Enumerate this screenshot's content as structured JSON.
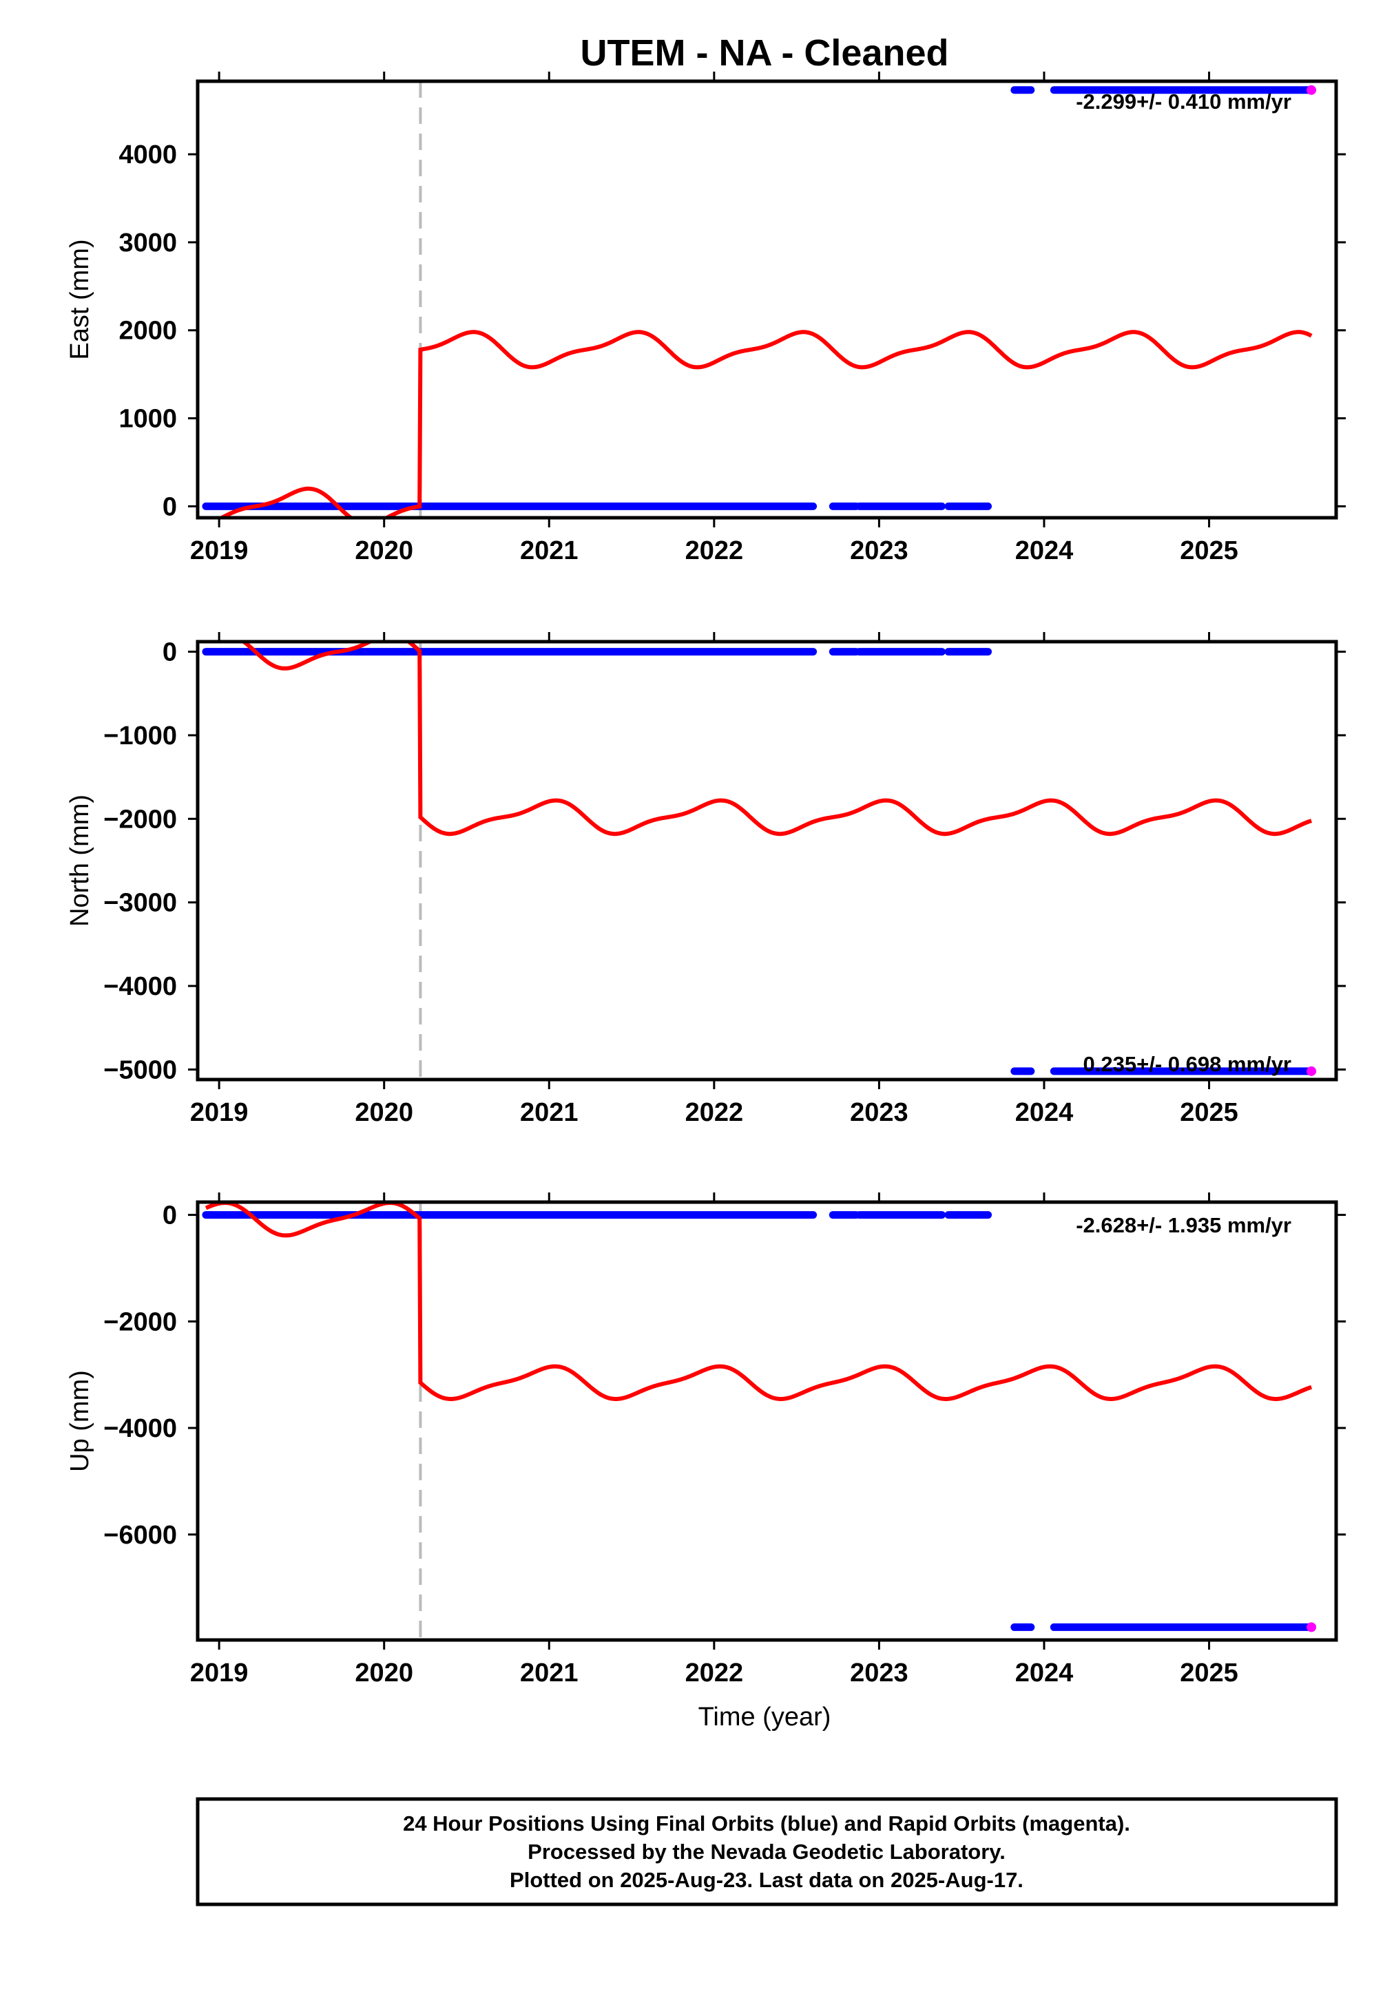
{
  "chart_data": {
    "type": "scatter",
    "title": "UTEM  - NA - Cleaned",
    "xlabel": "Time (year)",
    "xlim": [
      2018.87,
      2025.77
    ],
    "x_ticks": [
      2019,
      2020,
      2021,
      2022,
      2023,
      2024,
      2025
    ],
    "x_tick_labels": [
      "2019",
      "2020",
      "2021",
      "2022",
      "2023",
      "2024",
      "2025"
    ],
    "vertical_dashed_line_x": 2020.22,
    "colors": {
      "final_orbits": "#0000ff",
      "rapid_orbits": "#ff00ff",
      "model": "#ff0000",
      "event_line": "#bbbbbb"
    },
    "panels": [
      {
        "ylabel": "East (mm)",
        "ylim": [
          -130,
          4830
        ],
        "y_ticks": [
          0,
          1000,
          2000,
          3000,
          4000
        ],
        "y_tick_labels": [
          "0",
          "1000",
          "2000",
          "3000",
          "4000"
        ],
        "rate": "-2.299+/- 0.410 mm/yr",
        "data_segments": [
          {
            "x_start": 2018.92,
            "x_end": 2022.6,
            "y": 0
          },
          {
            "x_start": 2022.72,
            "x_end": 2022.86,
            "y": 0
          },
          {
            "x_start": 2022.88,
            "x_end": 2023.38,
            "y": 0
          },
          {
            "x_start": 2023.42,
            "x_end": 2023.66,
            "y": 0
          },
          {
            "x_start": 2023.82,
            "x_end": 2023.92,
            "y": 4730
          },
          {
            "x_start": 2024.06,
            "x_end": 2025.6,
            "y": 4730
          }
        ],
        "rapid_point": {
          "x": 2025.62,
          "y": 4730
        },
        "model": {
          "pre_offset": 0,
          "post_offset": 1780,
          "amplitude": 170,
          "phase_year": 2019.47,
          "semiannual": 60
        }
      },
      {
        "ylabel": "North (mm)",
        "ylim": [
          -5120,
          120
        ],
        "y_ticks": [
          -5000,
          -4000,
          -3000,
          -2000,
          -1000,
          0
        ],
        "y_tick_labels": [
          "−5000",
          "−4000",
          "−3000",
          "−2000",
          "−1000",
          "0"
        ],
        "rate": "0.235+/- 0.698 mm/yr",
        "data_segments": [
          {
            "x_start": 2018.92,
            "x_end": 2022.6,
            "y": 0
          },
          {
            "x_start": 2022.72,
            "x_end": 2022.86,
            "y": 0
          },
          {
            "x_start": 2022.88,
            "x_end": 2023.38,
            "y": 0
          },
          {
            "x_start": 2023.42,
            "x_end": 2023.66,
            "y": 0
          },
          {
            "x_start": 2023.82,
            "x_end": 2023.92,
            "y": -5020
          },
          {
            "x_start": 2024.06,
            "x_end": 2025.6,
            "y": -5020
          }
        ],
        "rapid_point": {
          "x": 2025.62,
          "y": -5020
        },
        "model": {
          "pre_offset": 0,
          "post_offset": -1980,
          "amplitude": -170,
          "phase_year": 2019.47,
          "semiannual": 60
        }
      },
      {
        "ylabel": "Up (mm)",
        "ylim": [
          -7980,
          240
        ],
        "y_ticks": [
          -6000,
          -4000,
          -2000,
          0
        ],
        "y_tick_labels": [
          "−6000",
          "−4000",
          "−2000",
          "0"
        ],
        "rate": "-2.628+/- 1.935 mm/yr",
        "data_segments": [
          {
            "x_start": 2018.92,
            "x_end": 2022.6,
            "y": 0
          },
          {
            "x_start": 2022.72,
            "x_end": 2022.86,
            "y": 0
          },
          {
            "x_start": 2022.88,
            "x_end": 2023.38,
            "y": 0
          },
          {
            "x_start": 2023.42,
            "x_end": 2023.66,
            "y": 0
          },
          {
            "x_start": 2023.82,
            "x_end": 2023.92,
            "y": -7740
          },
          {
            "x_start": 2024.06,
            "x_end": 2025.6,
            "y": -7740
          }
        ],
        "rapid_point": {
          "x": 2025.62,
          "y": -7740
        },
        "model": {
          "pre_offset": -80,
          "post_offset": -3150,
          "amplitude": -270,
          "phase_year": 2019.47,
          "semiannual": 80
        }
      }
    ]
  },
  "footer": {
    "line1": "24 Hour Positions Using Final Orbits (blue) and Rapid Orbits (magenta).",
    "line2": "Processed by the Nevada Geodetic Laboratory.",
    "line3": "Plotted on 2025-Aug-23. Last data on 2025-Aug-17."
  }
}
